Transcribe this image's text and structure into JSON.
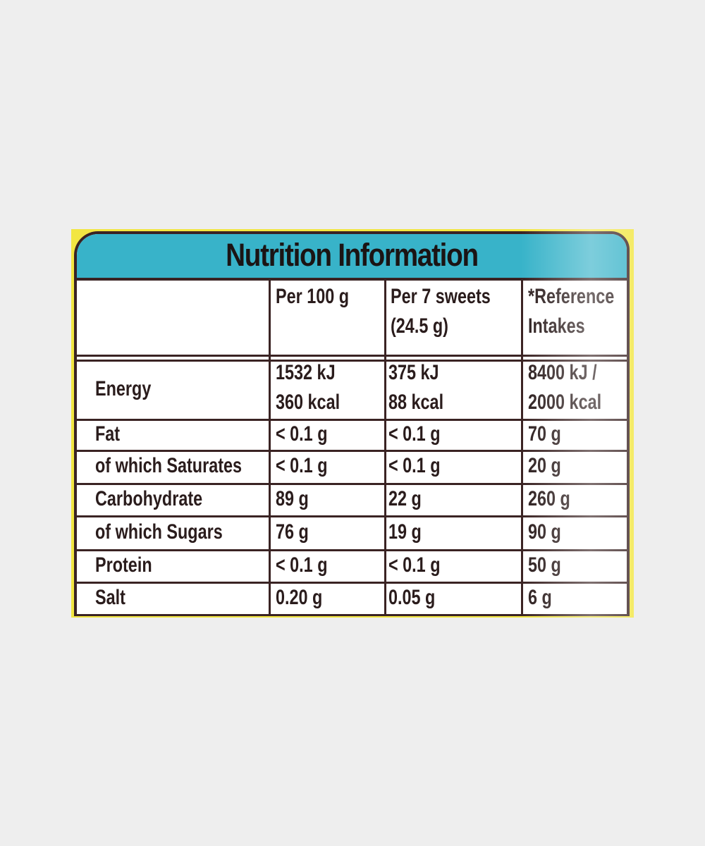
{
  "title": "Nutrition Information",
  "columns": {
    "per100": [
      "Per 100 g"
    ],
    "perServing": [
      "Per 7 sweets",
      "(24.5 g)"
    ],
    "reference": [
      "*Reference",
      "Intakes"
    ]
  },
  "rows": [
    {
      "name": "Energy",
      "per100": [
        "1532 kJ",
        "360 kcal"
      ],
      "perServing": [
        "375 kJ",
        "88 kcal"
      ],
      "reference": [
        "8400 kJ /",
        "2000 kcal"
      ]
    },
    {
      "name": "Fat",
      "per100": "< 0.1 g",
      "perServing": "< 0.1 g",
      "reference": "70 g"
    },
    {
      "name": "of which Saturates",
      "per100": "< 0.1 g",
      "perServing": "< 0.1 g",
      "reference": "20 g"
    },
    {
      "name": "Carbohydrate",
      "per100": "89 g",
      "perServing": "22 g",
      "reference": "260 g"
    },
    {
      "name": "of which Sugars",
      "per100": "76 g",
      "perServing": "19 g",
      "reference": "90 g"
    },
    {
      "name": "Protein",
      "per100": "< 0.1 g",
      "perServing": "< 0.1 g",
      "reference": "50 g"
    },
    {
      "name": "Salt",
      "per100": "0.20 g",
      "perServing": "0.05 g",
      "reference": "6 g"
    }
  ],
  "colors": {
    "background": "#eeeeee",
    "packaging_yellow": "#f2e642",
    "title_band": "#38b3c9",
    "ink": "#3a2323"
  }
}
